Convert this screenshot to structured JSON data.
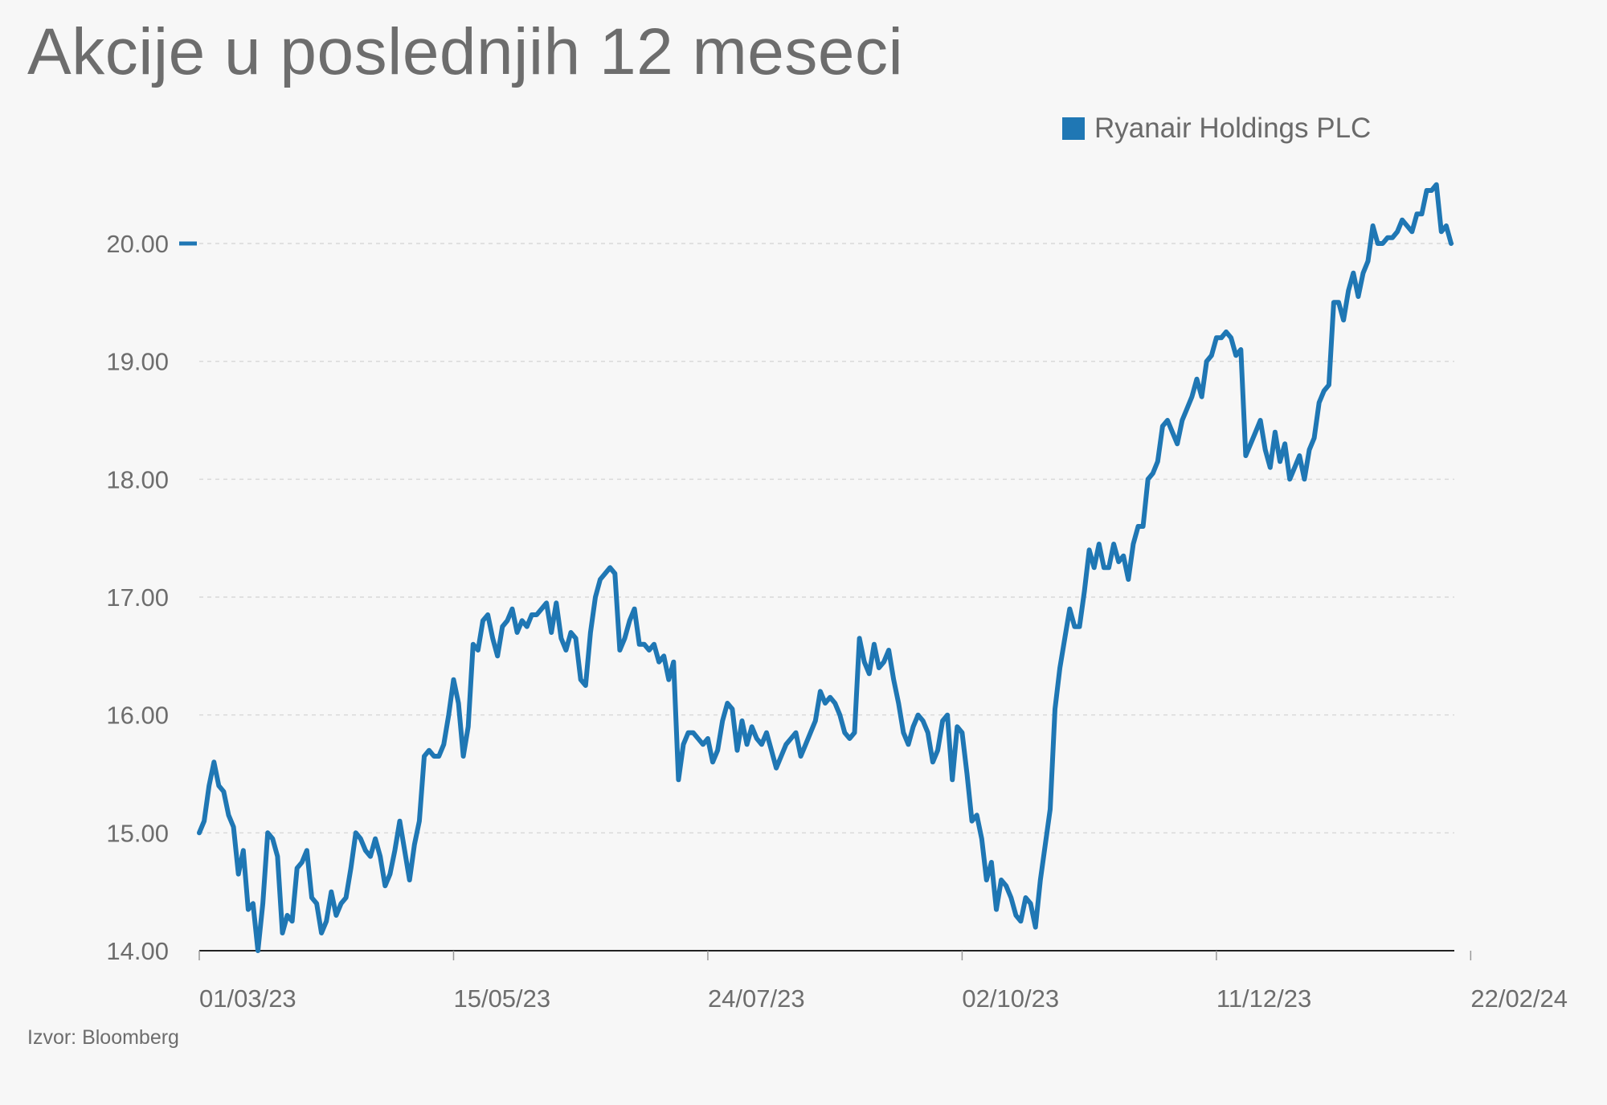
{
  "title": "Akcije u poslednjih 12 meseci",
  "source": "Izvor: Bloomberg",
  "chart_data": {
    "type": "line",
    "legend_position": "top-right",
    "grid": true,
    "ylim": [
      14,
      20.6
    ],
    "y_ticks": [
      {
        "value": 20,
        "label": "20.00"
      },
      {
        "value": 19,
        "label": "19.00"
      },
      {
        "value": 18,
        "label": "18.00"
      },
      {
        "value": 17,
        "label": "17.00"
      },
      {
        "value": 16,
        "label": "16.00"
      },
      {
        "value": 15,
        "label": "15.00"
      },
      {
        "value": 14,
        "label": "14.00"
      }
    ],
    "x_ticks": [
      {
        "index": 0,
        "label": "01/03/23"
      },
      {
        "index": 52,
        "label": "15/05/23"
      },
      {
        "index": 104,
        "label": "24/07/23"
      },
      {
        "index": 156,
        "label": "02/10/23"
      },
      {
        "index": 208,
        "label": "11/12/23"
      },
      {
        "index": 260,
        "label": "22/02/24"
      }
    ],
    "series": [
      {
        "name": "Ryanair Holdings PLC",
        "color": "#1f77b4",
        "values": [
          15.0,
          15.1,
          15.4,
          15.6,
          15.4,
          15.35,
          15.15,
          15.05,
          14.65,
          14.85,
          14.35,
          14.4,
          14.0,
          14.4,
          15.0,
          14.95,
          14.8,
          14.15,
          14.3,
          14.25,
          14.7,
          14.75,
          14.85,
          14.45,
          14.4,
          14.15,
          14.25,
          14.5,
          14.3,
          14.4,
          14.45,
          14.7,
          15.0,
          14.95,
          14.85,
          14.8,
          14.95,
          14.8,
          14.55,
          14.65,
          14.85,
          15.1,
          14.85,
          14.6,
          14.9,
          15.1,
          15.65,
          15.7,
          15.65,
          15.65,
          15.75,
          16.0,
          16.3,
          16.1,
          15.65,
          15.9,
          16.6,
          16.55,
          16.8,
          16.85,
          16.65,
          16.5,
          16.75,
          16.8,
          16.9,
          16.7,
          16.8,
          16.75,
          16.85,
          16.85,
          16.9,
          16.95,
          16.7,
          16.95,
          16.65,
          16.55,
          16.7,
          16.65,
          16.3,
          16.25,
          16.7,
          17.0,
          17.15,
          17.2,
          17.25,
          17.2,
          16.55,
          16.65,
          16.8,
          16.9,
          16.6,
          16.6,
          16.55,
          16.6,
          16.45,
          16.5,
          16.3,
          16.45,
          15.45,
          15.75,
          15.85,
          15.85,
          15.8,
          15.75,
          15.8,
          15.6,
          15.7,
          15.95,
          16.1,
          16.05,
          15.7,
          15.95,
          15.75,
          15.9,
          15.8,
          15.75,
          15.85,
          15.7,
          15.55,
          15.65,
          15.75,
          15.8,
          15.85,
          15.65,
          15.75,
          15.85,
          15.95,
          16.2,
          16.1,
          16.15,
          16.1,
          16.0,
          15.85,
          15.8,
          15.85,
          16.65,
          16.45,
          16.35,
          16.6,
          16.4,
          16.45,
          16.55,
          16.3,
          16.1,
          15.85,
          15.75,
          15.9,
          16.0,
          15.95,
          15.85,
          15.6,
          15.7,
          15.95,
          16.0,
          15.45,
          15.9,
          15.85,
          15.5,
          15.1,
          15.15,
          14.95,
          14.6,
          14.75,
          14.35,
          14.6,
          14.55,
          14.45,
          14.3,
          14.25,
          14.45,
          14.4,
          14.2,
          14.6,
          14.9,
          15.2,
          16.05,
          16.4,
          16.65,
          16.9,
          16.75,
          16.75,
          17.05,
          17.4,
          17.25,
          17.45,
          17.25,
          17.25,
          17.45,
          17.3,
          17.35,
          17.15,
          17.45,
          17.6,
          17.6,
          18.0,
          18.05,
          18.15,
          18.45,
          18.5,
          18.4,
          18.3,
          18.5,
          18.6,
          18.7,
          18.85,
          18.7,
          19.0,
          19.05,
          19.2,
          19.2,
          19.25,
          19.2,
          19.05,
          19.1,
          18.2,
          18.3,
          18.4,
          18.5,
          18.25,
          18.1,
          18.4,
          18.15,
          18.3,
          18.0,
          18.1,
          18.2,
          18.0,
          18.25,
          18.35,
          18.65,
          18.75,
          18.8,
          19.5,
          19.5,
          19.35,
          19.6,
          19.75,
          19.55,
          19.75,
          19.85,
          20.15,
          20.0,
          20.0,
          20.05,
          20.05,
          20.1,
          20.2,
          20.15,
          20.1,
          20.25,
          20.25,
          20.45,
          20.45,
          20.5,
          20.1,
          20.15,
          20.0
        ]
      }
    ]
  }
}
